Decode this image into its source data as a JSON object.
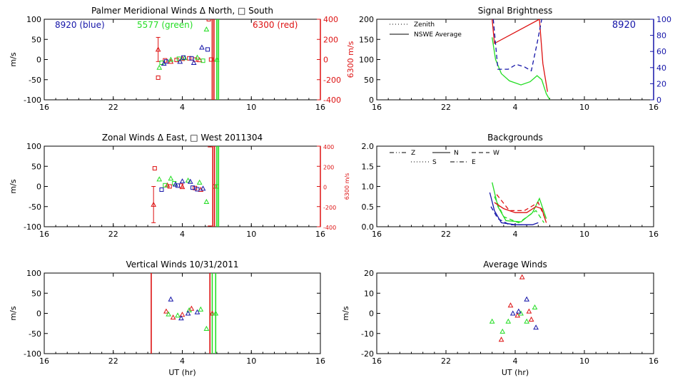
{
  "colors": {
    "blue": "#1414a8",
    "green": "#22dd22",
    "red": "#dd1111",
    "axis": "#000000"
  },
  "chart_data": [
    {
      "type": "scatter",
      "title": "Palmer Meridional Winds Δ North, □ South",
      "xlabel": "",
      "ylabel": "m/s",
      "y2label": "6300 m/s",
      "xlim": [
        16,
        40
      ],
      "ylim": [
        -100,
        100
      ],
      "y2lim": [
        -400,
        400
      ],
      "xticks": [
        "16",
        "22",
        "4",
        "10",
        "16"
      ],
      "yticks": [
        "-100",
        "-50",
        "0",
        "50",
        "100"
      ],
      "y2ticks": [
        "-400",
        "-200",
        "0",
        "200",
        "400"
      ],
      "legend_text": [
        {
          "text": "8920 (blue)",
          "color": "blue"
        },
        {
          "text": "5577 (green)",
          "color": "green"
        },
        {
          "text": "6300 (red)",
          "color": "red"
        }
      ],
      "vlines": [
        {
          "x": 30.6,
          "color": "red"
        },
        {
          "x": 30.75,
          "color": "red"
        },
        {
          "x": 31.0,
          "color": "green"
        },
        {
          "x": 31.15,
          "color": "green"
        }
      ],
      "series": [
        {
          "color": "red",
          "axis": "y2",
          "marker": "triangle",
          "points": [
            [
              25.9,
              100,
              120
            ]
          ]
        },
        {
          "color": "red",
          "axis": "y2",
          "marker": "square",
          "points": [
            [
              25.9,
              -180
            ],
            [
              30.3,
              400
            ]
          ]
        },
        {
          "color": "red",
          "marker": "triangle",
          "points": [
            [
              27.0,
              -5
            ],
            [
              28.0,
              2
            ],
            [
              29.5,
              -1
            ]
          ]
        },
        {
          "color": "red",
          "marker": "square",
          "points": [
            [
              26.5,
              -2
            ],
            [
              27.5,
              -1
            ],
            [
              28.6,
              3
            ],
            [
              29.1,
              0
            ],
            [
              30.5,
              0
            ]
          ]
        },
        {
          "color": "green",
          "marker": "triangle",
          "points": [
            [
              26.0,
              -20
            ],
            [
              27.0,
              0
            ],
            [
              28.2,
              4
            ],
            [
              29.3,
              5
            ],
            [
              30.1,
              75
            ],
            [
              31.0,
              0
            ]
          ]
        },
        {
          "color": "green",
          "marker": "square",
          "points": [
            [
              26.2,
              -8
            ],
            [
              27.7,
              2
            ],
            [
              29.8,
              -3
            ]
          ]
        },
        {
          "color": "blue",
          "marker": "triangle",
          "points": [
            [
              26.4,
              -10
            ],
            [
              27.8,
              -5
            ],
            [
              29.0,
              -8
            ],
            [
              29.7,
              30
            ]
          ]
        },
        {
          "color": "blue",
          "marker": "square",
          "points": [
            [
              26.6,
              -5
            ],
            [
              28.1,
              5
            ],
            [
              28.8,
              3
            ],
            [
              30.2,
              25
            ]
          ]
        }
      ]
    },
    {
      "type": "scatter",
      "title": "Zonal Winds Δ East, □ West 2011304",
      "xlabel": "",
      "ylabel": "m/s",
      "y2label": "6300 m/s",
      "xlim": [
        16,
        40
      ],
      "ylim": [
        -100,
        100
      ],
      "y2lim": [
        -400,
        400
      ],
      "xticks": [
        "16",
        "22",
        "4",
        "10",
        "16"
      ],
      "yticks": [
        "-100",
        "-50",
        "0",
        "50",
        "100"
      ],
      "y2ticks": [
        "-400",
        "-200",
        "0",
        "200",
        "400"
      ],
      "vlines": [
        {
          "x": 30.65,
          "color": "red"
        },
        {
          "x": 30.8,
          "color": "red"
        },
        {
          "x": 31.0,
          "color": "green"
        },
        {
          "x": 31.15,
          "color": "green"
        }
      ],
      "series": [
        {
          "color": "red",
          "axis": "y2",
          "marker": "triangle",
          "points": [
            [
              25.5,
              -180,
              180
            ]
          ]
        },
        {
          "color": "red",
          "axis": "y2",
          "marker": "square",
          "points": [
            [
              25.6,
              180
            ],
            [
              30.4,
              -410
            ],
            [
              30.4,
              410
            ]
          ]
        },
        {
          "color": "red",
          "marker": "triangle",
          "points": [
            [
              26.7,
              3
            ],
            [
              28.0,
              -1
            ],
            [
              29.6,
              -8
            ]
          ]
        },
        {
          "color": "red",
          "marker": "square",
          "points": [
            [
              26.9,
              0
            ],
            [
              27.9,
              2
            ],
            [
              29.1,
              -4
            ],
            [
              30.8,
              0
            ]
          ]
        },
        {
          "color": "green",
          "marker": "triangle",
          "points": [
            [
              26.0,
              18
            ],
            [
              27.0,
              20
            ],
            [
              28.5,
              15
            ],
            [
              29.5,
              10
            ],
            [
              30.1,
              -38
            ]
          ]
        },
        {
          "color": "green",
          "marker": "square",
          "points": [
            [
              26.5,
              3
            ],
            [
              27.3,
              8
            ],
            [
              31.0,
              0
            ]
          ]
        },
        {
          "color": "blue",
          "marker": "triangle",
          "points": [
            [
              27.4,
              5
            ],
            [
              28.0,
              13
            ],
            [
              28.7,
              12
            ],
            [
              29.8,
              -5
            ]
          ]
        },
        {
          "color": "blue",
          "marker": "square",
          "points": [
            [
              26.2,
              -8
            ],
            [
              27.6,
              2
            ],
            [
              28.9,
              -3
            ],
            [
              29.3,
              -7
            ]
          ]
        }
      ]
    },
    {
      "type": "scatter",
      "title": "Vertical Winds 10/31/2011",
      "xlabel": "UT (hr)",
      "ylabel": "m/s",
      "xlim": [
        16,
        40
      ],
      "ylim": [
        -100,
        100
      ],
      "xticks": [
        "16",
        "22",
        "4",
        "10",
        "16"
      ],
      "yticks": [
        "-100",
        "-50",
        "0",
        "50",
        "100"
      ],
      "vlines": [
        {
          "x": 25.3,
          "color": "red"
        },
        {
          "x": 30.4,
          "color": "red"
        },
        {
          "x": 30.6,
          "color": "green"
        },
        {
          "x": 30.9,
          "color": "green"
        }
      ],
      "series": [
        {
          "color": "red",
          "marker": "triangle",
          "points": [
            [
              26.6,
              5
            ],
            [
              27.2,
              -10
            ],
            [
              28.0,
              -3
            ],
            [
              28.8,
              12
            ],
            [
              30.6,
              0
            ]
          ]
        },
        {
          "color": "green",
          "marker": "triangle",
          "points": [
            [
              26.8,
              -2
            ],
            [
              27.6,
              -5
            ],
            [
              28.6,
              8
            ],
            [
              29.6,
              10
            ],
            [
              30.1,
              -38
            ],
            [
              30.9,
              0
            ]
          ]
        },
        {
          "color": "blue",
          "marker": "triangle",
          "points": [
            [
              27.0,
              35
            ],
            [
              27.9,
              -12
            ],
            [
              28.5,
              0
            ],
            [
              29.3,
              3
            ]
          ]
        }
      ]
    },
    {
      "type": "line",
      "title": "Signal Brightness",
      "xlabel": "",
      "ylabel": "",
      "xlim": [
        16,
        40
      ],
      "ylim": [
        0,
        200
      ],
      "y2lim": [
        0,
        100
      ],
      "xticks": [
        "16",
        "22",
        "4",
        "10",
        "16"
      ],
      "yticks": [
        "0",
        "50",
        "100",
        "150",
        "200"
      ],
      "y2ticks": [
        "0",
        "20",
        "40",
        "60",
        "80",
        "100"
      ],
      "legend": [
        {
          "text": "Zenith",
          "style": "dotted"
        },
        {
          "text": "NSWE Average",
          "style": "solid"
        }
      ],
      "corner_label": "8920",
      "series": [
        {
          "color": "green",
          "style": "solid",
          "points": [
            [
              26.0,
              155
            ],
            [
              26.3,
              100
            ],
            [
              26.8,
              65
            ],
            [
              27.5,
              47
            ],
            [
              28.5,
              37
            ],
            [
              29.3,
              45
            ],
            [
              29.9,
              60
            ],
            [
              30.3,
              50
            ],
            [
              30.7,
              15
            ],
            [
              31.0,
              0
            ]
          ]
        },
        {
          "color": "red",
          "style": "solid",
          "points": [
            [
              26.0,
              200
            ],
            [
              26.2,
              140
            ],
            [
              30.1,
              200
            ],
            [
              30.4,
              90
            ],
            [
              30.8,
              20
            ]
          ]
        },
        {
          "color": "blue",
          "style": "dashed",
          "axis": "y2",
          "points": [
            [
              26.1,
              100
            ],
            [
              26.5,
              38
            ],
            [
              27.4,
              38
            ],
            [
              28.1,
              44
            ],
            [
              28.8,
              41
            ],
            [
              29.4,
              36
            ],
            [
              29.9,
              70
            ],
            [
              30.3,
              100
            ]
          ]
        }
      ]
    },
    {
      "type": "line",
      "title": "Backgrounds",
      "xlabel": "",
      "ylabel": "",
      "xlim": [
        16,
        40
      ],
      "ylim": [
        0,
        2
      ],
      "xticks": [
        "16",
        "22",
        "4",
        "10",
        "16"
      ],
      "yticks": [
        "0.0",
        "0.5",
        "1.0",
        "1.5",
        "2.0"
      ],
      "legend": [
        {
          "text": "Z",
          "style": "dashdotdot"
        },
        {
          "text": "N",
          "style": "solid"
        },
        {
          "text": "W",
          "style": "dashed"
        },
        {
          "text": "S",
          "style": "dotted"
        },
        {
          "text": "E",
          "style": "dashdot"
        }
      ],
      "series": [
        {
          "color": "green",
          "style": "solid",
          "points": [
            [
              26.0,
              1.1
            ],
            [
              26.5,
              0.5
            ],
            [
              27.2,
              0.15
            ],
            [
              28.5,
              0.12
            ],
            [
              29.5,
              0.35
            ],
            [
              30.1,
              0.7
            ],
            [
              30.7,
              0.2
            ]
          ]
        },
        {
          "color": "green",
          "style": "dashed",
          "points": [
            [
              26.2,
              0.75
            ],
            [
              27.0,
              0.25
            ],
            [
              28.3,
              0.1
            ],
            [
              29.8,
              0.4
            ],
            [
              30.5,
              0.1
            ]
          ]
        },
        {
          "color": "red",
          "style": "solid",
          "points": [
            [
              26.2,
              0.6
            ],
            [
              27.0,
              0.45
            ],
            [
              28.0,
              0.35
            ],
            [
              29.0,
              0.35
            ],
            [
              29.8,
              0.5
            ],
            [
              30.3,
              0.45
            ],
            [
              30.7,
              0.1
            ]
          ]
        },
        {
          "color": "red",
          "style": "dashed",
          "points": [
            [
              26.4,
              0.8
            ],
            [
              27.5,
              0.4
            ],
            [
              28.8,
              0.4
            ],
            [
              30.0,
              0.6
            ],
            [
              30.6,
              0.2
            ]
          ]
        },
        {
          "color": "blue",
          "style": "solid",
          "points": [
            [
              25.8,
              0.85
            ],
            [
              26.2,
              0.4
            ],
            [
              26.8,
              0.1
            ],
            [
              28.0,
              0.05
            ],
            [
              29.5,
              0.05
            ],
            [
              30.0,
              0.1
            ]
          ]
        },
        {
          "color": "blue",
          "style": "dashed",
          "points": [
            [
              25.9,
              0.5
            ],
            [
              26.5,
              0.2
            ],
            [
              27.5,
              0.05
            ],
            [
              29.0,
              0.05
            ]
          ]
        }
      ]
    },
    {
      "type": "scatter",
      "title": "Average Winds",
      "xlabel": "UT (hr)",
      "ylabel": "m/s",
      "xlim": [
        16,
        40
      ],
      "ylim": [
        -20,
        20
      ],
      "xticks": [
        "16",
        "22",
        "4",
        "10",
        "16"
      ],
      "yticks": [
        "-20",
        "-10",
        "0",
        "10",
        "20"
      ],
      "series": [
        {
          "color": "red",
          "marker": "triangle",
          "points": [
            [
              26.8,
              -13
            ],
            [
              27.6,
              4
            ],
            [
              28.2,
              -1
            ],
            [
              28.6,
              18
            ],
            [
              29.2,
              1
            ],
            [
              29.4,
              -3
            ]
          ]
        },
        {
          "color": "green",
          "marker": "triangle",
          "points": [
            [
              26.0,
              -4
            ],
            [
              26.9,
              -9
            ],
            [
              27.4,
              -4
            ],
            [
              28.5,
              0
            ],
            [
              29.0,
              -4
            ],
            [
              29.7,
              3
            ]
          ]
        },
        {
          "color": "blue",
          "marker": "triangle",
          "points": [
            [
              27.8,
              0
            ],
            [
              28.3,
              1
            ],
            [
              29.0,
              7
            ],
            [
              29.8,
              -7
            ]
          ]
        }
      ]
    }
  ]
}
